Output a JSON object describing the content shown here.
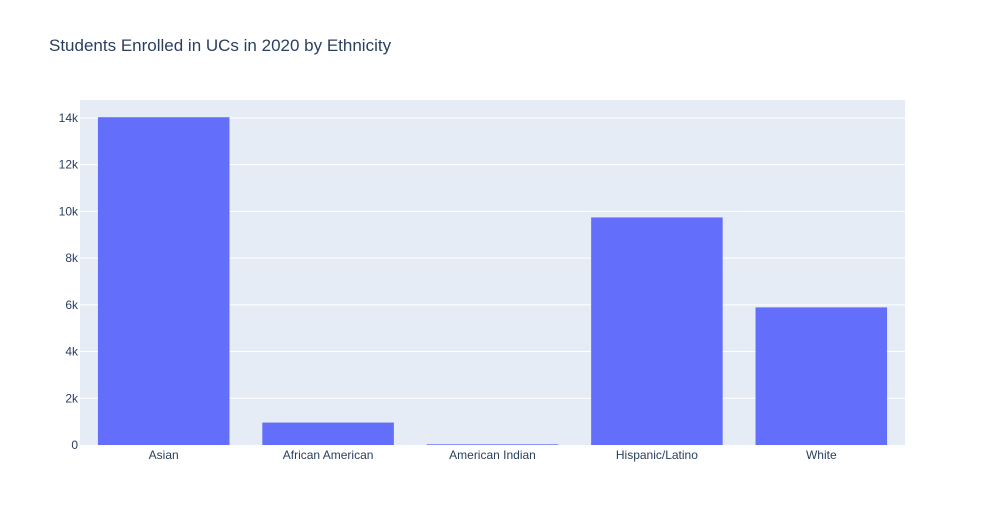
{
  "chart_data": {
    "type": "bar",
    "title": "Students Enrolled in UCs in 2020 by Ethnicity",
    "xlabel": "",
    "ylabel": "",
    "categories": [
      "Asian",
      "African American",
      "American Indian",
      "Hispanic/Latino",
      "White"
    ],
    "values": [
      14030,
      960,
      30,
      9740,
      5890
    ],
    "ylim": [
      0,
      14768
    ],
    "yticks": [
      0,
      2000,
      4000,
      6000,
      8000,
      10000,
      12000,
      14000
    ],
    "ytick_labels": [
      "0",
      "2k",
      "4k",
      "6k",
      "8k",
      "10k",
      "12k",
      "14k"
    ],
    "grid": true,
    "legend": "none",
    "colors": {
      "bar": "#636efa",
      "plot_bg": "#e5ecf6",
      "grid": "#ffffff",
      "text": "#2a3f5f"
    }
  }
}
